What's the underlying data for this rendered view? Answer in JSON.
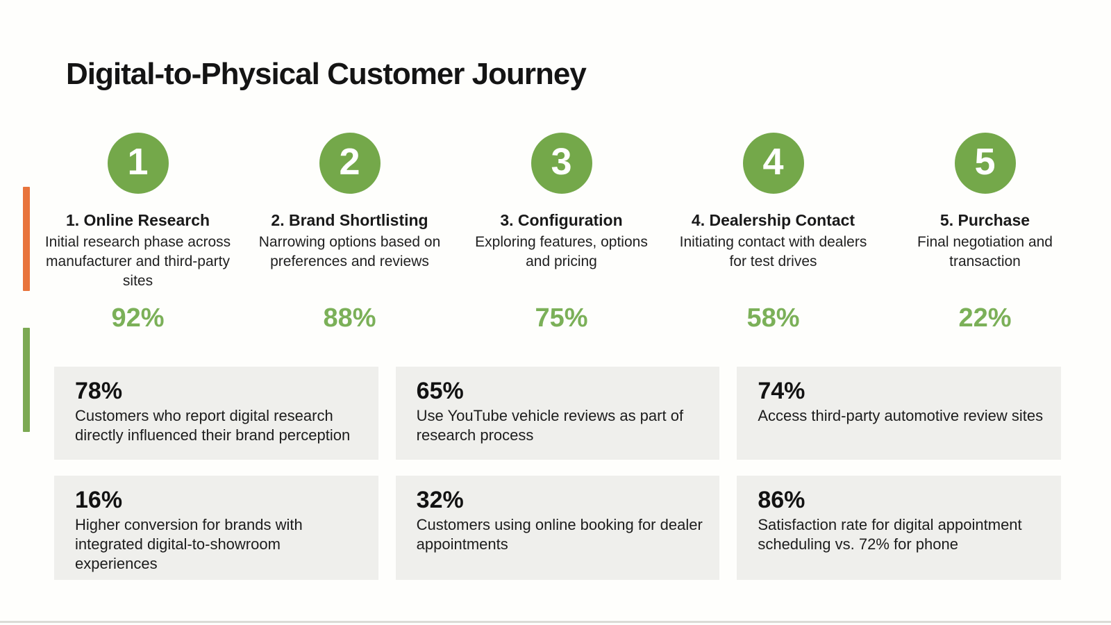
{
  "page": {
    "title": "Digital-to-Physical Customer Journey",
    "colors": {
      "accent-green": "#74a84a",
      "pct-green": "#7bb058",
      "accent-orange": "#e8743c",
      "bar-green": "#7ca953",
      "card-bg": "#efefec"
    }
  },
  "steps": [
    {
      "number": "1",
      "title": "1. Online Research",
      "description": "Initial research phase across manufacturer and third-party sites",
      "percent": "92%"
    },
    {
      "number": "2",
      "title": "2. Brand Shortlisting",
      "description": "Narrowing options based on preferences and reviews",
      "percent": "88%"
    },
    {
      "number": "3",
      "title": "3. Configuration",
      "description": "Exploring features, options and pricing",
      "percent": "75%"
    },
    {
      "number": "4",
      "title": "4. Dealership Contact",
      "description": "Initiating contact with dealers for test drives",
      "percent": "58%"
    },
    {
      "number": "5",
      "title": "5. Purchase",
      "description": "Final negotiation and transaction",
      "percent": "22%"
    }
  ],
  "stats": [
    {
      "percent": "78%",
      "description": "Customers who report digital research directly influenced their brand perception"
    },
    {
      "percent": "65%",
      "description": "Use YouTube vehicle reviews as part of research process"
    },
    {
      "percent": "74%",
      "description": "Access third-party automotive review sites"
    },
    {
      "percent": "16%",
      "description": "Higher conversion for brands with integrated digital-to-showroom experiences"
    },
    {
      "percent": "32%",
      "description": "Customers using online booking for dealer appointments"
    },
    {
      "percent": "86%",
      "description": "Satisfaction rate for digital appointment scheduling vs. 72% for phone"
    }
  ]
}
